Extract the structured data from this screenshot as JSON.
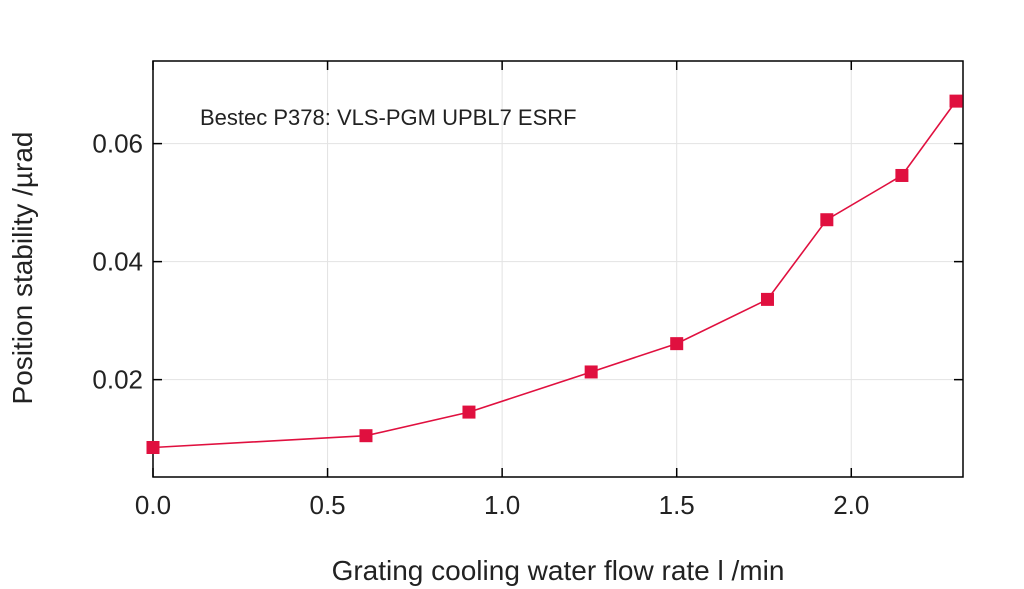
{
  "chart_data": {
    "type": "line",
    "title": "",
    "annotation": "Bestec P378: VLS-PGM UPBL7 ESRF",
    "xlabel": "Grating cooling water flow rate l /min",
    "ylabel": "Position stability /µrad",
    "xlim": [
      0.0,
      2.32
    ],
    "ylim": [
      0.0035,
      0.074
    ],
    "xticks": [
      0.0,
      0.5,
      1.0,
      1.5,
      2.0
    ],
    "xtick_labels": [
      "0.0",
      "0.5",
      "1.0",
      "1.5",
      "2.0"
    ],
    "yticks": [
      0.02,
      0.04,
      0.06
    ],
    "ytick_labels": [
      "0.02",
      "0.04",
      "0.06"
    ],
    "grid": true,
    "series": [
      {
        "name": "Bestec P378: VLS-PGM UPBL7 ESRF",
        "color": "#e0103f",
        "marker": "square",
        "x": [
          0.0,
          0.61,
          0.905,
          1.255,
          1.5,
          1.76,
          1.93,
          2.145,
          2.3
        ],
        "y": [
          0.0085,
          0.0105,
          0.0145,
          0.0213,
          0.0261,
          0.0336,
          0.0471,
          0.0546,
          0.0672
        ]
      }
    ]
  }
}
